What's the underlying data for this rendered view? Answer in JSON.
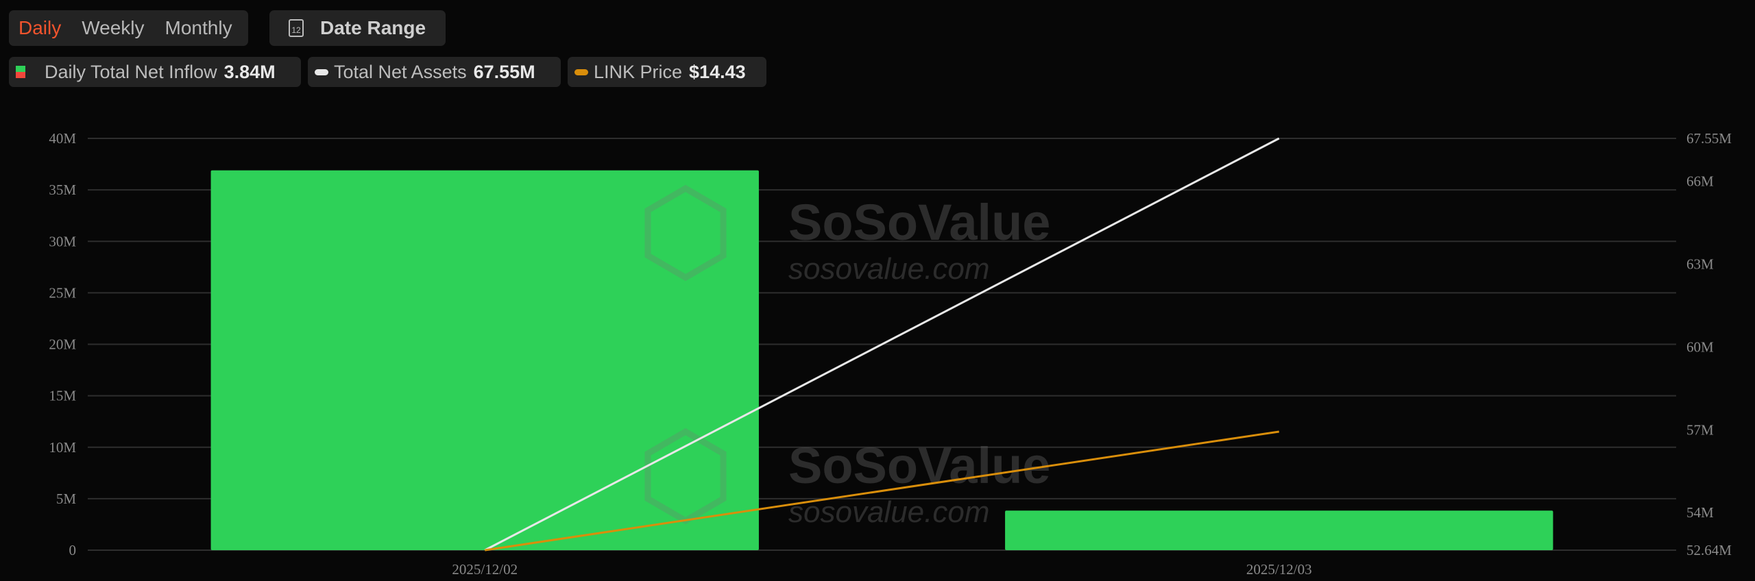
{
  "toolbar": {
    "tabs": [
      {
        "label": "Daily",
        "active": true
      },
      {
        "label": "Weekly",
        "active": false
      },
      {
        "label": "Monthly",
        "active": false
      }
    ],
    "date_range_label": "Date Range",
    "calendar_icon_text": "12"
  },
  "legend": {
    "inflow": {
      "label": "Daily Total Net Inflow",
      "value": "3.84M"
    },
    "assets": {
      "label": "Total Net Assets",
      "value": "67.55M"
    },
    "price": {
      "label": "LINK Price",
      "value": "$14.43"
    }
  },
  "watermark": {
    "brand": "SoSoValue",
    "url": "sosovalue.com"
  },
  "colors": {
    "accent": "#f2542d",
    "inflow_positive": "#2ed158",
    "inflow_negative": "#f0473b",
    "assets_line": "#e8e8e8",
    "price_line": "#d98e0b"
  },
  "chart_data": {
    "type": "bar",
    "categories": [
      "2025/12/02",
      "2025/12/03"
    ],
    "series": [
      {
        "name": "Daily Total Net Inflow",
        "type": "bar",
        "axis": "left",
        "values": [
          36.9,
          3.84
        ]
      },
      {
        "name": "Total Net Assets",
        "type": "line",
        "axis": "right",
        "values": [
          52.64,
          67.55
        ]
      },
      {
        "name": "LINK Price",
        "type": "line",
        "axis": "hidden",
        "values": [
          13.5,
          14.43
        ]
      }
    ],
    "left_axis": {
      "unit": "M",
      "ylim": [
        0,
        40
      ],
      "ticks": [
        "0",
        "5M",
        "10M",
        "15M",
        "20M",
        "25M",
        "30M",
        "35M",
        "40M"
      ]
    },
    "right_axis": {
      "ylim": [
        52.64,
        67.55
      ],
      "ticks": [
        "52.64M",
        "54M",
        "57M",
        "60M",
        "63M",
        "66M",
        "67.55M"
      ],
      "tick_values": [
        52.64,
        54,
        57,
        60,
        63,
        66,
        67.55
      ]
    },
    "price_axis_range": [
      13.5,
      16.73
    ],
    "grid": true
  }
}
